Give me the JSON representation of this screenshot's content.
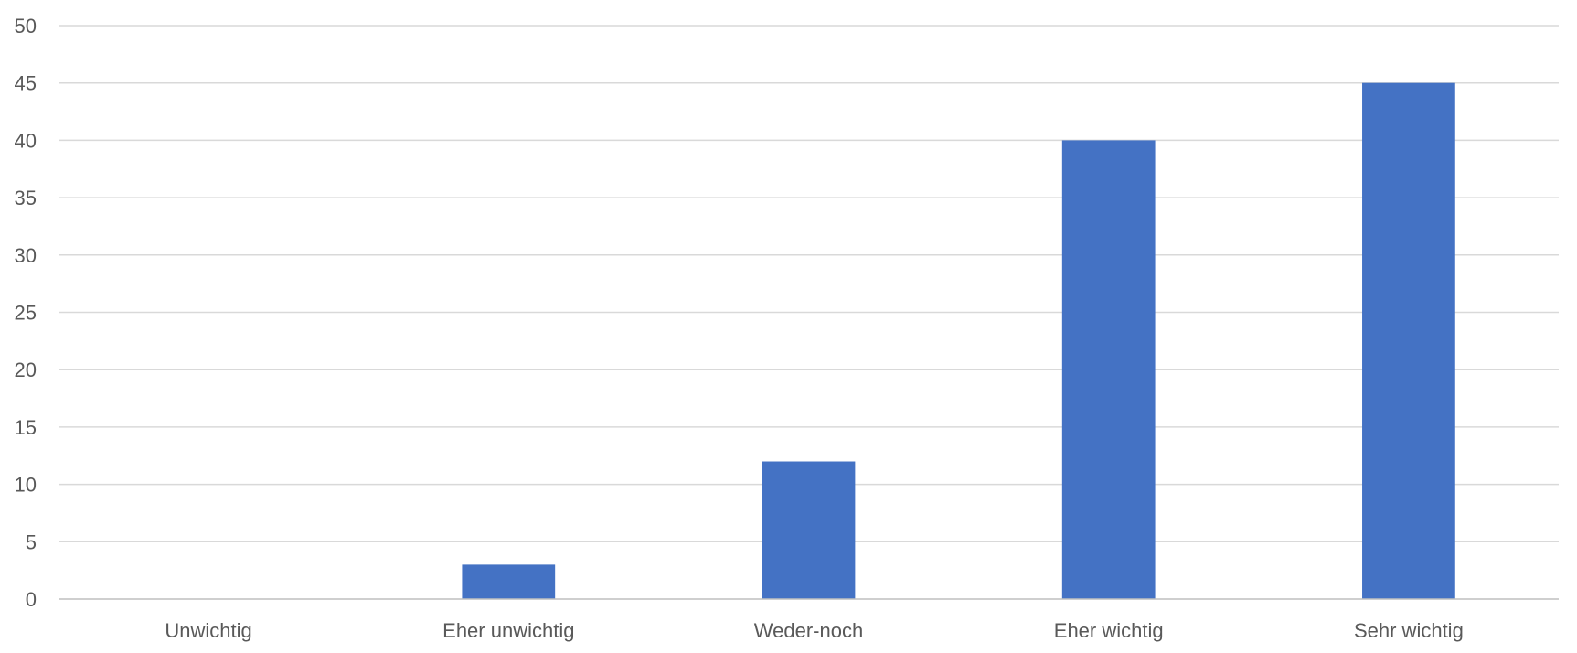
{
  "chart_data": {
    "type": "bar",
    "title": "",
    "xlabel": "",
    "ylabel": "",
    "categories": [
      "Unwichtig",
      "Eher unwichtig",
      "Weder-noch",
      "Eher wichtig",
      "Sehr wichtig"
    ],
    "values": [
      0,
      3,
      12,
      40,
      45
    ],
    "ylim": [
      0,
      50
    ],
    "yticks": [
      "0",
      "5",
      "10",
      "15",
      "20",
      "25",
      "30",
      "35",
      "40",
      "45",
      "50"
    ],
    "grid": true,
    "legend": "none",
    "bar_color": "#4472C4"
  }
}
